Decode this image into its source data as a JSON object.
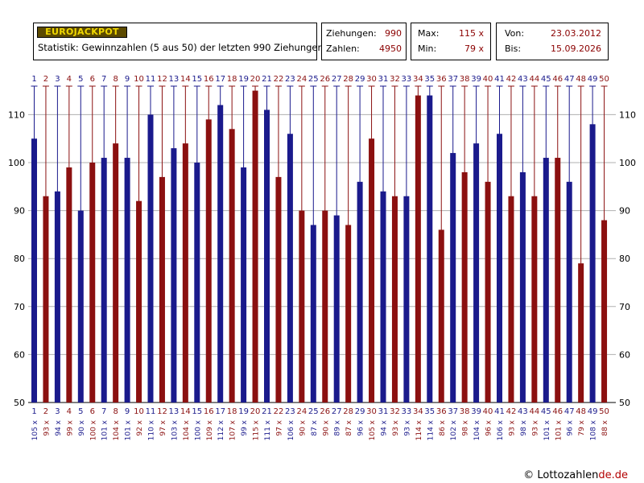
{
  "header": {
    "brand": "EUROJACKPOT",
    "subtitle": "Statistik: Gewinnzahlen (5 aus 50) der letzten 990 Ziehungen",
    "stats": {
      "ziehungen_label": "Ziehungen:",
      "ziehungen_value": "990",
      "zahlen_label": "Zahlen:",
      "zahlen_value": "4950",
      "max_label": "Max:",
      "max_value": "115 x",
      "min_label": "Min:",
      "min_value": "79 x",
      "von_label": "Von:",
      "von_value": "23.03.2012",
      "bis_label": "Bis:",
      "bis_value": "15.09.2026"
    }
  },
  "footer": {
    "copyright": "© Lottozahlen",
    "domain": "de.de"
  },
  "colors": {
    "blue": "#1a1a8c",
    "red": "#8b1010",
    "grid": "#b0b0b0"
  },
  "chart_data": {
    "type": "bar",
    "categories": [
      "1",
      "2",
      "3",
      "4",
      "5",
      "6",
      "7",
      "8",
      "9",
      "10",
      "11",
      "12",
      "13",
      "14",
      "15",
      "16",
      "17",
      "18",
      "19",
      "20",
      "21",
      "22",
      "23",
      "24",
      "25",
      "26",
      "27",
      "28",
      "29",
      "30",
      "31",
      "32",
      "33",
      "34",
      "35",
      "36",
      "37",
      "38",
      "39",
      "40",
      "41",
      "42",
      "43",
      "44",
      "45",
      "46",
      "47",
      "48",
      "49",
      "50"
    ],
    "values": [
      105,
      93,
      94,
      99,
      90,
      100,
      101,
      104,
      101,
      92,
      110,
      97,
      103,
      104,
      100,
      109,
      112,
      107,
      99,
      115,
      111,
      97,
      106,
      90,
      87,
      90,
      89,
      87,
      96,
      105,
      94,
      93,
      93,
      114,
      114,
      86,
      102,
      98,
      104,
      96,
      106,
      93,
      98,
      93,
      101,
      101,
      96,
      79,
      108,
      88
    ],
    "value_labels": [
      "105 x",
      "93 x",
      "94 x",
      "99 x",
      "90 x",
      "100 x",
      "101 x",
      "104 x",
      "101 x",
      "92 x",
      "110 x",
      "97 x",
      "103 x",
      "104 x",
      "100 x",
      "109 x",
      "112 x",
      "107 x",
      "99 x",
      "115 x",
      "111 x",
      "97 x",
      "106 x",
      "90 x",
      "87 x",
      "90 x",
      "89 x",
      "87 x",
      "96 x",
      "105 x",
      "94 x",
      "93 x",
      "93 x",
      "114 x",
      "114 x",
      "86 x",
      "102 x",
      "98 x",
      "104 x",
      "96 x",
      "106 x",
      "93 x",
      "98 x",
      "93 x",
      "101 x",
      "101 x",
      "96 x",
      "79 x",
      "108 x",
      "88 x"
    ],
    "yticks": [
      "50",
      "60",
      "70",
      "80",
      "90",
      "100",
      "110"
    ],
    "ylim": [
      50,
      117
    ],
    "grid": true,
    "series_color_rule": "odd numbers blue, even numbers red"
  }
}
